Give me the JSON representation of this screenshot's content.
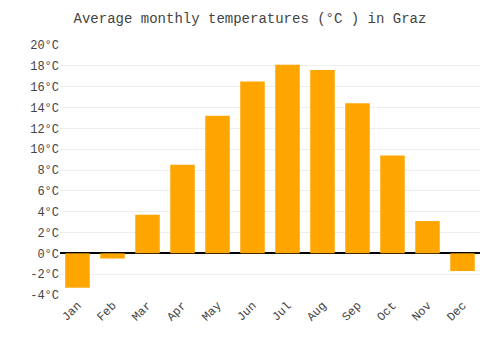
{
  "chart_data": {
    "type": "bar",
    "title": "Average monthly temperatures (°C ) in Graz",
    "categories": [
      "Jan",
      "Feb",
      "Mar",
      "Apr",
      "May",
      "Jun",
      "Jul",
      "Aug",
      "Sep",
      "Oct",
      "Nov",
      "Dec"
    ],
    "values": [
      -3.3,
      -0.5,
      3.7,
      8.5,
      13.2,
      16.5,
      18.1,
      17.6,
      14.4,
      9.4,
      3.1,
      -1.7
    ],
    "color": "#FFA500",
    "ylim": [
      -4,
      20
    ],
    "yticks": [
      {
        "value": -4,
        "label": "-4°C"
      },
      {
        "value": -2,
        "label": "-2°C"
      },
      {
        "value": 0,
        "label": "0°C"
      },
      {
        "value": 2,
        "label": "2°C"
      },
      {
        "value": 4,
        "label": "4°C"
      },
      {
        "value": 6,
        "label": "6°C"
      },
      {
        "value": 8,
        "label": "8°C"
      },
      {
        "value": 10,
        "label": "10°C"
      },
      {
        "value": 12,
        "label": "12°C"
      },
      {
        "value": 14,
        "label": "14°C"
      },
      {
        "value": 16,
        "label": "16°C"
      },
      {
        "value": 18,
        "label": "18°C"
      },
      {
        "value": 20,
        "label": "20°C"
      }
    ],
    "grid": true
  }
}
